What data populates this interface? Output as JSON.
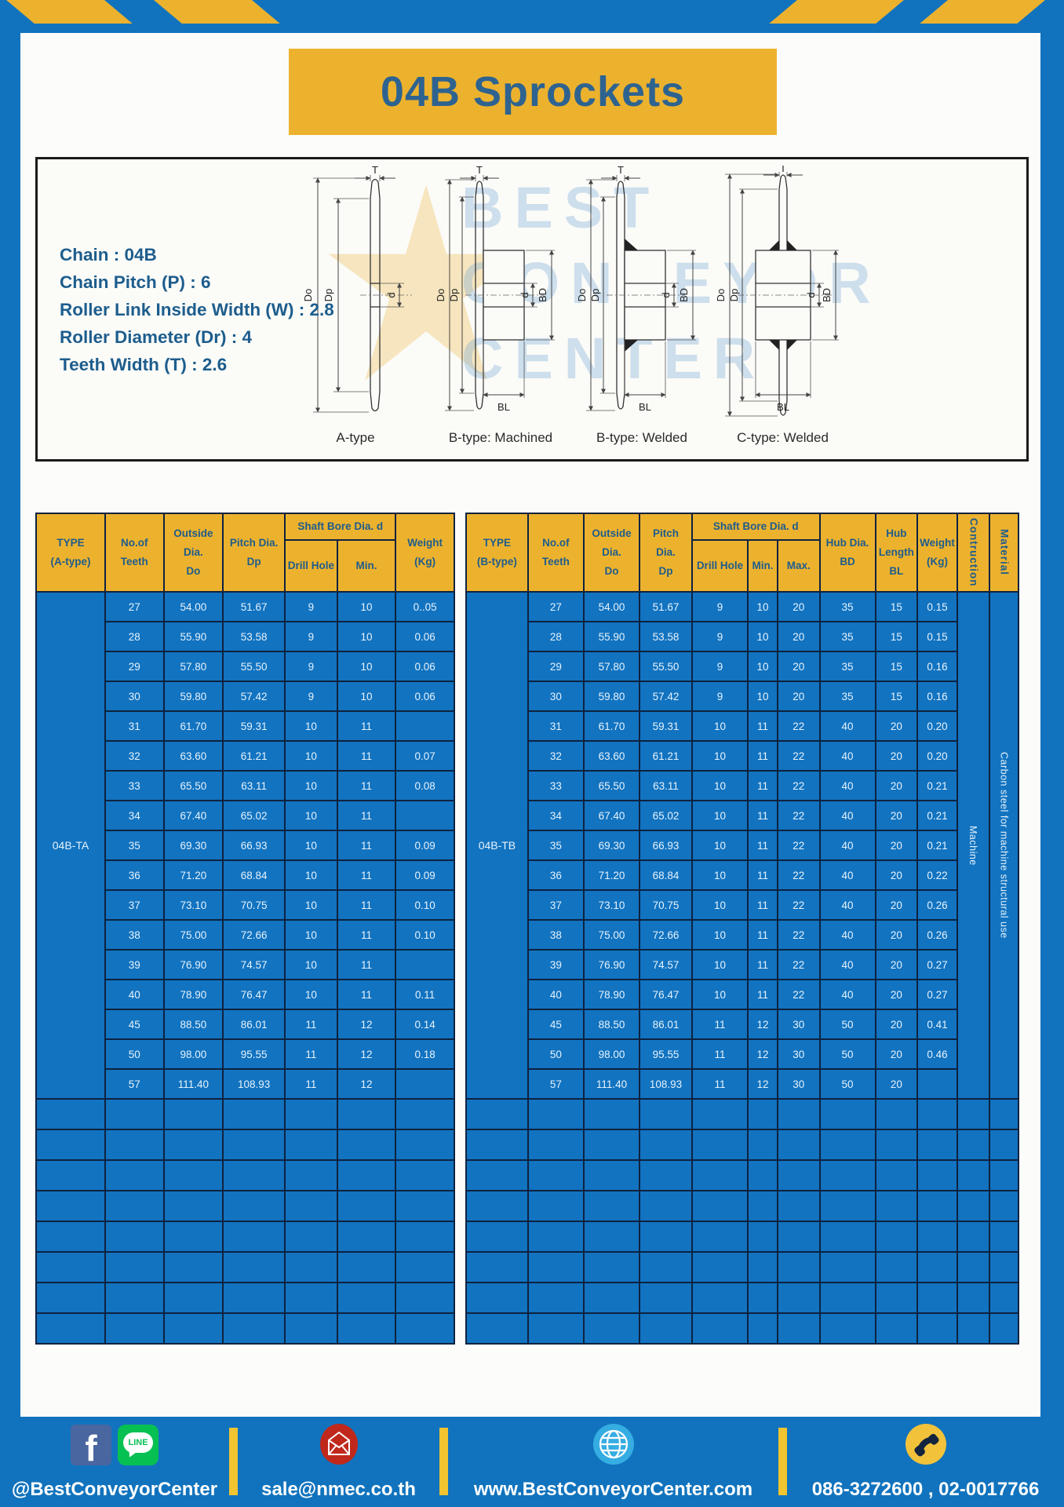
{
  "page": {
    "title": "04B Sprockets"
  },
  "specs": {
    "lines": [
      "Chain : 04B",
      "Chain Pitch (P) : 6",
      "Roller Link Inside Width (W) : 2.8",
      "Roller Diameter (Dr) : 4",
      "Teeth Width (T) : 2.6"
    ]
  },
  "watermark": {
    "lines": [
      "BEST",
      "CONVEYOR",
      "CENTER"
    ]
  },
  "diagrams": {
    "labels": [
      "A-type",
      "B-type: Machined",
      "B-type: Welded",
      "C-type: Welded"
    ],
    "dims": {
      "do": "Do",
      "dp": "Dp",
      "t": "T",
      "d": "d",
      "bd": "BD",
      "bl": "BL"
    }
  },
  "table_a": {
    "headers": {
      "type": "TYPE\n(A-type)",
      "teeth": "No.of\nTeeth",
      "outside": "Outside\nDia.\nDo",
      "pitch": "Pitch Dia.\nDp",
      "shaft_bore": "Shaft Bore Dia. d",
      "drill": "Drill Hole",
      "min": "Min.",
      "weight": "Weight\n(Kg)"
    },
    "type_value": "04B-TA",
    "rows": [
      [
        "27",
        "54.00",
        "51.67",
        "9",
        "10",
        "0..05"
      ],
      [
        "28",
        "55.90",
        "53.58",
        "9",
        "10",
        "0.06"
      ],
      [
        "29",
        "57.80",
        "55.50",
        "9",
        "10",
        "0.06"
      ],
      [
        "30",
        "59.80",
        "57.42",
        "9",
        "10",
        "0.06"
      ],
      [
        "31",
        "61.70",
        "59.31",
        "10",
        "11",
        ""
      ],
      [
        "32",
        "63.60",
        "61.21",
        "10",
        "11",
        "0.07"
      ],
      [
        "33",
        "65.50",
        "63.11",
        "10",
        "11",
        "0.08"
      ],
      [
        "34",
        "67.40",
        "65.02",
        "10",
        "11",
        ""
      ],
      [
        "35",
        "69.30",
        "66.93",
        "10",
        "11",
        "0.09"
      ],
      [
        "36",
        "71.20",
        "68.84",
        "10",
        "11",
        "0.09"
      ],
      [
        "37",
        "73.10",
        "70.75",
        "10",
        "11",
        "0.10"
      ],
      [
        "38",
        "75.00",
        "72.66",
        "10",
        "11",
        "0.10"
      ],
      [
        "39",
        "76.90",
        "74.57",
        "10",
        "11",
        ""
      ],
      [
        "40",
        "78.90",
        "76.47",
        "10",
        "11",
        "0.11"
      ],
      [
        "45",
        "88.50",
        "86.01",
        "11",
        "12",
        "0.14"
      ],
      [
        "50",
        "98.00",
        "95.55",
        "11",
        "12",
        "0.18"
      ],
      [
        "57",
        "111.40",
        "108.93",
        "11",
        "12",
        ""
      ]
    ],
    "empty_row_count": 8
  },
  "table_b": {
    "headers": {
      "type": "TYPE\n(B-type)",
      "teeth": "No.of\nTeeth",
      "outside": "Outside\nDia.\nDo",
      "pitch": "Pitch Dia.\nDp",
      "shaft_bore": "Shaft Bore Dia. d",
      "drill": "Drill Hole",
      "min": "Min.",
      "max": "Max.",
      "hub_dia": "Hub Dia.\nBD",
      "hub_len": "Hub\nLength\nBL",
      "weight": "Weight\n(Kg)",
      "construction": "Contruction",
      "material": "Material"
    },
    "type_value": "04B-TB",
    "construction_value": "Machine",
    "material_value": "Carbon steel for machine structural use",
    "rows": [
      [
        "27",
        "54.00",
        "51.67",
        "9",
        "10",
        "20",
        "35",
        "15",
        "0.15"
      ],
      [
        "28",
        "55.90",
        "53.58",
        "9",
        "10",
        "20",
        "35",
        "15",
        "0.15"
      ],
      [
        "29",
        "57.80",
        "55.50",
        "9",
        "10",
        "20",
        "35",
        "15",
        "0.16"
      ],
      [
        "30",
        "59.80",
        "57.42",
        "9",
        "10",
        "20",
        "35",
        "15",
        "0.16"
      ],
      [
        "31",
        "61.70",
        "59.31",
        "10",
        "11",
        "22",
        "40",
        "20",
        "0.20"
      ],
      [
        "32",
        "63.60",
        "61.21",
        "10",
        "11",
        "22",
        "40",
        "20",
        "0.20"
      ],
      [
        "33",
        "65.50",
        "63.11",
        "10",
        "11",
        "22",
        "40",
        "20",
        "0.21"
      ],
      [
        "34",
        "67.40",
        "65.02",
        "10",
        "11",
        "22",
        "40",
        "20",
        "0.21"
      ],
      [
        "35",
        "69.30",
        "66.93",
        "10",
        "11",
        "22",
        "40",
        "20",
        "0.21"
      ],
      [
        "36",
        "71.20",
        "68.84",
        "10",
        "11",
        "22",
        "40",
        "20",
        "0.22"
      ],
      [
        "37",
        "73.10",
        "70.75",
        "10",
        "11",
        "22",
        "40",
        "20",
        "0.26"
      ],
      [
        "38",
        "75.00",
        "72.66",
        "10",
        "11",
        "22",
        "40",
        "20",
        "0.26"
      ],
      [
        "39",
        "76.90",
        "74.57",
        "10",
        "11",
        "22",
        "40",
        "20",
        "0.27"
      ],
      [
        "40",
        "78.90",
        "76.47",
        "10",
        "11",
        "22",
        "40",
        "20",
        "0.27"
      ],
      [
        "45",
        "88.50",
        "86.01",
        "11",
        "12",
        "30",
        "50",
        "20",
        "0.41"
      ],
      [
        "50",
        "98.00",
        "95.55",
        "11",
        "12",
        "30",
        "50",
        "20",
        "0.46"
      ],
      [
        "57",
        "111.40",
        "108.93",
        "11",
        "12",
        "30",
        "50",
        "20",
        ""
      ]
    ],
    "empty_row_count": 8
  },
  "footer": {
    "fb_letter": "f",
    "line_text": "LINE",
    "social_handle": "@BestConveyorCenter",
    "email": "sale@nmec.co.th",
    "website": "www.BestConveyorCenter.com",
    "phones": "086-3272600 , 02-0017766",
    "icons": [
      "facebook-icon",
      "line-icon",
      "email-icon",
      "globe-icon",
      "phone-icon"
    ]
  },
  "colors": {
    "frame_blue": "#1173BD",
    "gold": "#ECB22E",
    "navy_border": "#0D2240",
    "cell_blue": "#1273C0",
    "header_text": "#1F5C8B",
    "title_text": "#2E6390",
    "spec_text": "#1D5D8D",
    "cell_text": "#E6F3FC",
    "footer_text": "#FFFFFF",
    "divider_gold": "#F1C430",
    "facebook": "#4A66A0",
    "line_green": "#06C152",
    "email_red": "#C0281C",
    "globe_blue": "#35ADE3",
    "phone_yellow": "#F2C23A"
  }
}
